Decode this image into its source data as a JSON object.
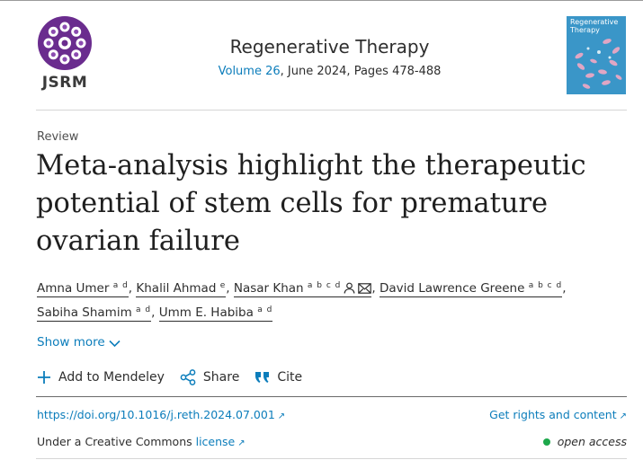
{
  "journal": {
    "logo_text": "JSRM",
    "title": "Regenerative Therapy",
    "volume_link": "Volume 26",
    "meta_rest": ", June 2024, Pages 478-488",
    "cover_title_line1": "Regenerative",
    "cover_title_line2": "Therapy"
  },
  "article": {
    "type": "Review",
    "title": "Meta-analysis highlight the therapeutic potential of stem cells for premature ovarian failure"
  },
  "authors": [
    {
      "name": "Amna Umer",
      "affil": "a d"
    },
    {
      "name": "Khalil Ahmad",
      "affil": "e"
    },
    {
      "name": "Nasar Khan",
      "affil": "a b c d"
    },
    {
      "name": "David Lawrence Greene",
      "affil": "a b c d"
    },
    {
      "name": "Sabiha Shamim",
      "affil": "a d"
    },
    {
      "name": "Umm E. Habiba",
      "affil": "a d"
    }
  ],
  "show_more": "Show more",
  "actions": {
    "mendeley": "Add to Mendeley",
    "share": "Share",
    "cite": "Cite"
  },
  "links": {
    "doi": "https://doi.org/10.1016/j.reth.2024.07.001",
    "rights": "Get rights and content",
    "license_prefix": "Under a Creative Commons ",
    "license_link": "license",
    "access": "open access"
  },
  "colors": {
    "link": "#0c7dbb",
    "access_dot": "#1da84b",
    "cover": "#3a96c8",
    "logo_purple": "#6a2c8e"
  }
}
